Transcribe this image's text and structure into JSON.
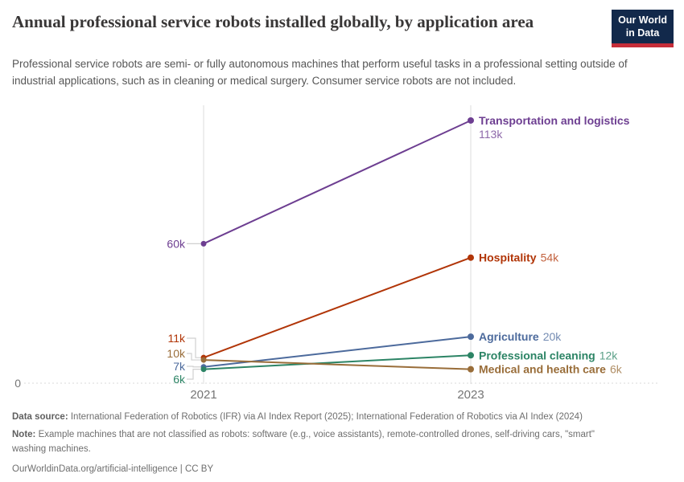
{
  "header": {
    "title": "Annual professional service robots installed globally, by application area",
    "subtitle": "Professional service robots are semi- or fully autonomous machines that perform useful tasks in a professional setting outside of industrial applications, such as in cleaning or medical surgery. Consumer service robots are not included.",
    "logo": {
      "line1": "Our World",
      "line2": "in Data"
    }
  },
  "chart_data": {
    "type": "line",
    "title": "Annual professional service robots installed globally, by application area",
    "x": [
      "2021",
      "2023"
    ],
    "x_labels": [
      "2021",
      "2023"
    ],
    "ylabel": "",
    "ylim": [
      0,
      120000
    ],
    "grid": "x-gridlines-only",
    "zero_line_label": "0",
    "legend_position": "right-inline",
    "series": [
      {
        "name": "Transportation and logistics",
        "values": [
          60000,
          113000
        ],
        "start_label": "60k",
        "end_value_label": "113k",
        "color": "#6d3e91"
      },
      {
        "name": "Hospitality",
        "values": [
          11000,
          54000
        ],
        "start_label": "11k",
        "end_value_label": "54k",
        "color": "#b13507"
      },
      {
        "name": "Agriculture",
        "values": [
          7000,
          20000
        ],
        "start_label": "7k",
        "end_value_label": "20k",
        "color": "#4c6a9c"
      },
      {
        "name": "Professional cleaning",
        "values": [
          6000,
          12000
        ],
        "start_label": "6k",
        "end_value_label": "12k",
        "color": "#2c8465"
      },
      {
        "name": "Medical and health care",
        "values": [
          10000,
          6000
        ],
        "start_label": "10k",
        "end_value_label": "6k",
        "color": "#996d39"
      }
    ]
  },
  "footer": {
    "source_label": "Data source:",
    "source_text": " International Federation of Robotics (IFR) via AI Index Report (2025); International Federation of Robotics via AI Index (2024)",
    "note_label": "Note:",
    "note_text": " Example machines that are not classified as robots: software (e.g., voice assistants), remote-controlled drones, self-driving cars, \"smart\" washing machines.",
    "license": "OurWorldinData.org/artificial-intelligence | CC BY"
  }
}
